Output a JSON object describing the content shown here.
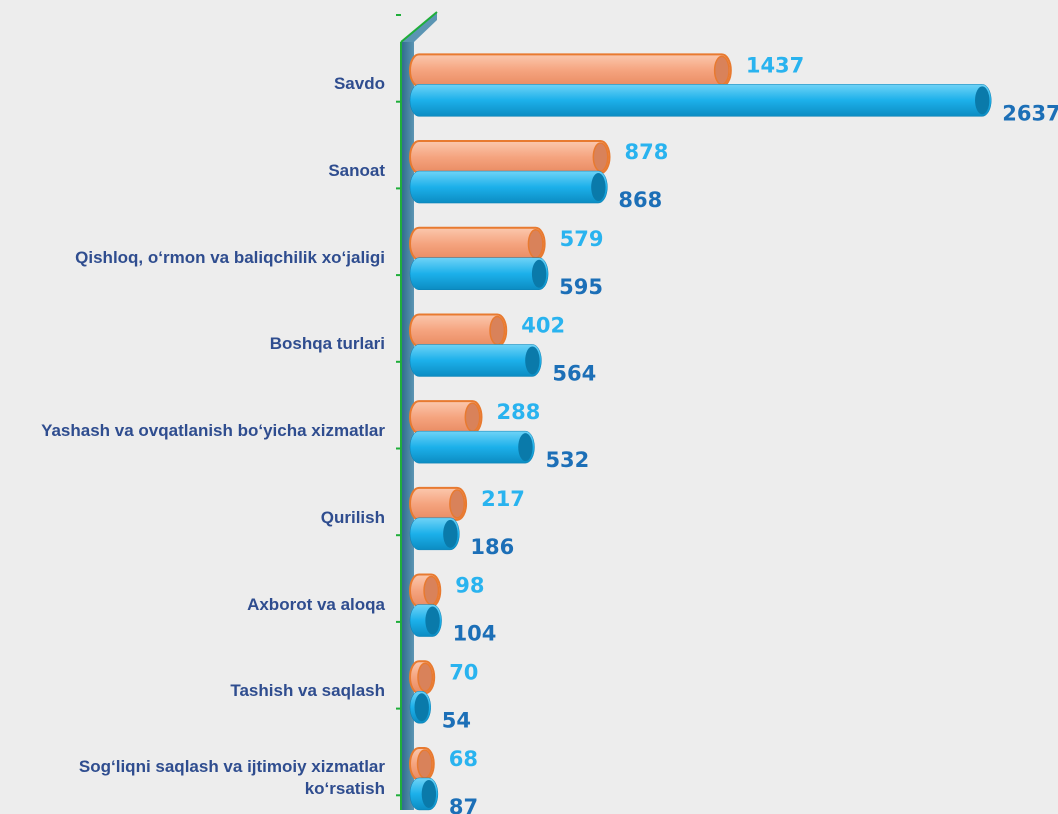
{
  "chart_data": {
    "type": "bar",
    "orientation": "horizontal",
    "categories": [
      "Savdo",
      "Sanoat",
      "Qishloq, o‘rmon va baliqchilik xo‘jaligi",
      "Boshqa turlari",
      "Yashash va ovqatlanish bo‘yicha xizmatlar",
      "Qurilish",
      "Axborot va aloqa",
      "Tashish va saqlash",
      "Sog‘liqni saqlash va ijtimoiy xizmatlar ko‘rsatish"
    ],
    "series": [
      {
        "color": "#f5a47f",
        "label_color": "#29b3ef",
        "values": [
          1437,
          878,
          579,
          402,
          288,
          217,
          98,
          70,
          68
        ]
      },
      {
        "color": "#1cb0ea",
        "label_color": "#1c6fb7",
        "values": [
          2637,
          868,
          595,
          564,
          532,
          186,
          104,
          54,
          87
        ]
      }
    ]
  }
}
